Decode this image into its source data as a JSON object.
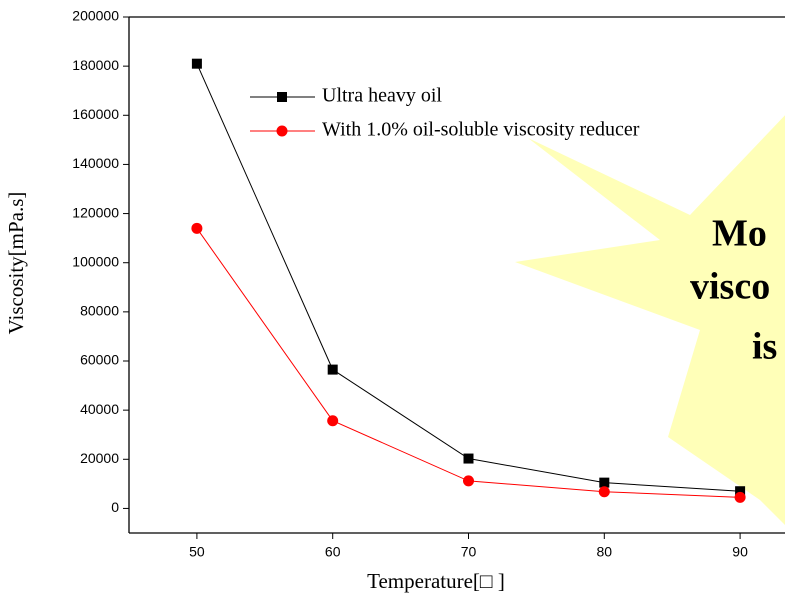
{
  "chart_data": {
    "type": "line",
    "x_label": "Temperature[□ ]",
    "y_label": "Viscosity[mPa.s]",
    "x": [
      50,
      60,
      70,
      80,
      90
    ],
    "series": [
      {
        "name": "Ultra heavy oil",
        "color": "#000000",
        "marker": "square",
        "values": [
          181000,
          56500,
          20300,
          10500,
          7000
        ]
      },
      {
        "name": "With 1.0% oil-soluble viscosity reducer",
        "color": "#ff0000",
        "marker": "circle",
        "values": [
          114000,
          35700,
          11200,
          6800,
          4500
        ]
      }
    ],
    "xlim": [
      45,
      95
    ],
    "xticks": [
      50,
      60,
      70,
      80,
      90
    ],
    "ylim": [
      -10000,
      200000
    ],
    "yticks": [
      0,
      20000,
      40000,
      60000,
      80000,
      100000,
      120000,
      140000,
      160000,
      180000,
      200000
    ],
    "annotation": [
      "Mo",
      "visco",
      "is"
    ],
    "annotation_color": "#b22222"
  }
}
